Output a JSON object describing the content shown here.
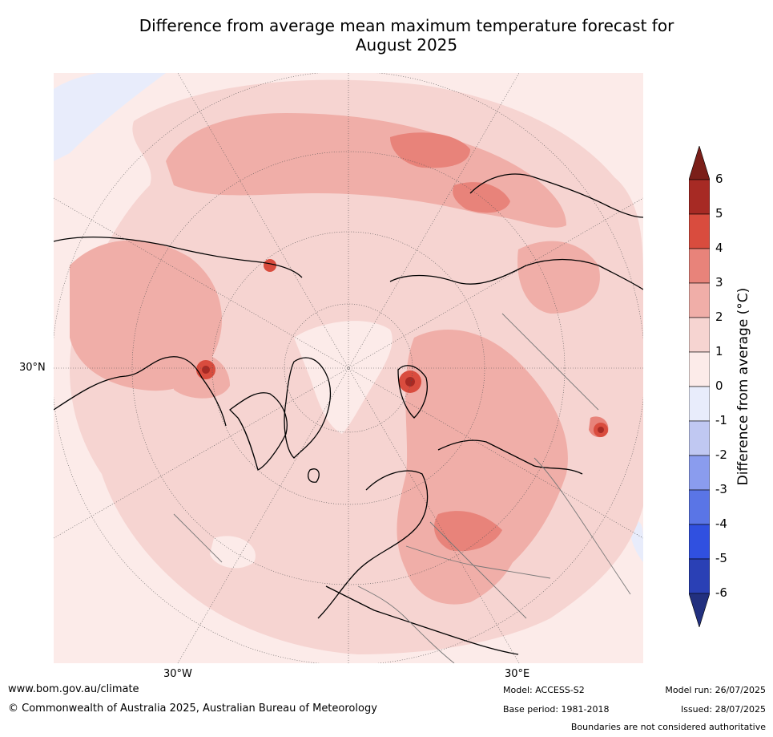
{
  "title_line1": "Difference from average mean maximum temperature forecast for",
  "title_line2": "August 2025",
  "lat_label": "30°N",
  "lon_labels": [
    "30°W",
    "30°E"
  ],
  "colorbar": {
    "label": "Difference from average (°C)",
    "ticks": [
      "6",
      "5",
      "4",
      "3",
      "2",
      "1",
      "0",
      "-1",
      "-2",
      "-3",
      "-4",
      "-5",
      "-6"
    ],
    "colors": [
      "#a72a24",
      "#d94c3e",
      "#e8837a",
      "#f0aea8",
      "#f6d4d1",
      "#fcebe9",
      "#e8ecfb",
      "#c0c8f2",
      "#8a9cee",
      "#5a75e6",
      "#3050e0",
      "#2a40b5"
    ],
    "over_color": "#7b1f19",
    "under_color": "#22307f"
  },
  "footer": {
    "website": "www.bom.gov.au/climate",
    "copyright": "© Commonwealth of Australia 2025, Australian Bureau of Meteorology",
    "model": "Model: ACCESS-S2",
    "base_period": "Base period: 1981-2018",
    "model_run": "Model run: 26/07/2025",
    "issued": "Issued: 28/07/2025",
    "boundaries_note": "Boundaries are not considered authoritative"
  }
}
